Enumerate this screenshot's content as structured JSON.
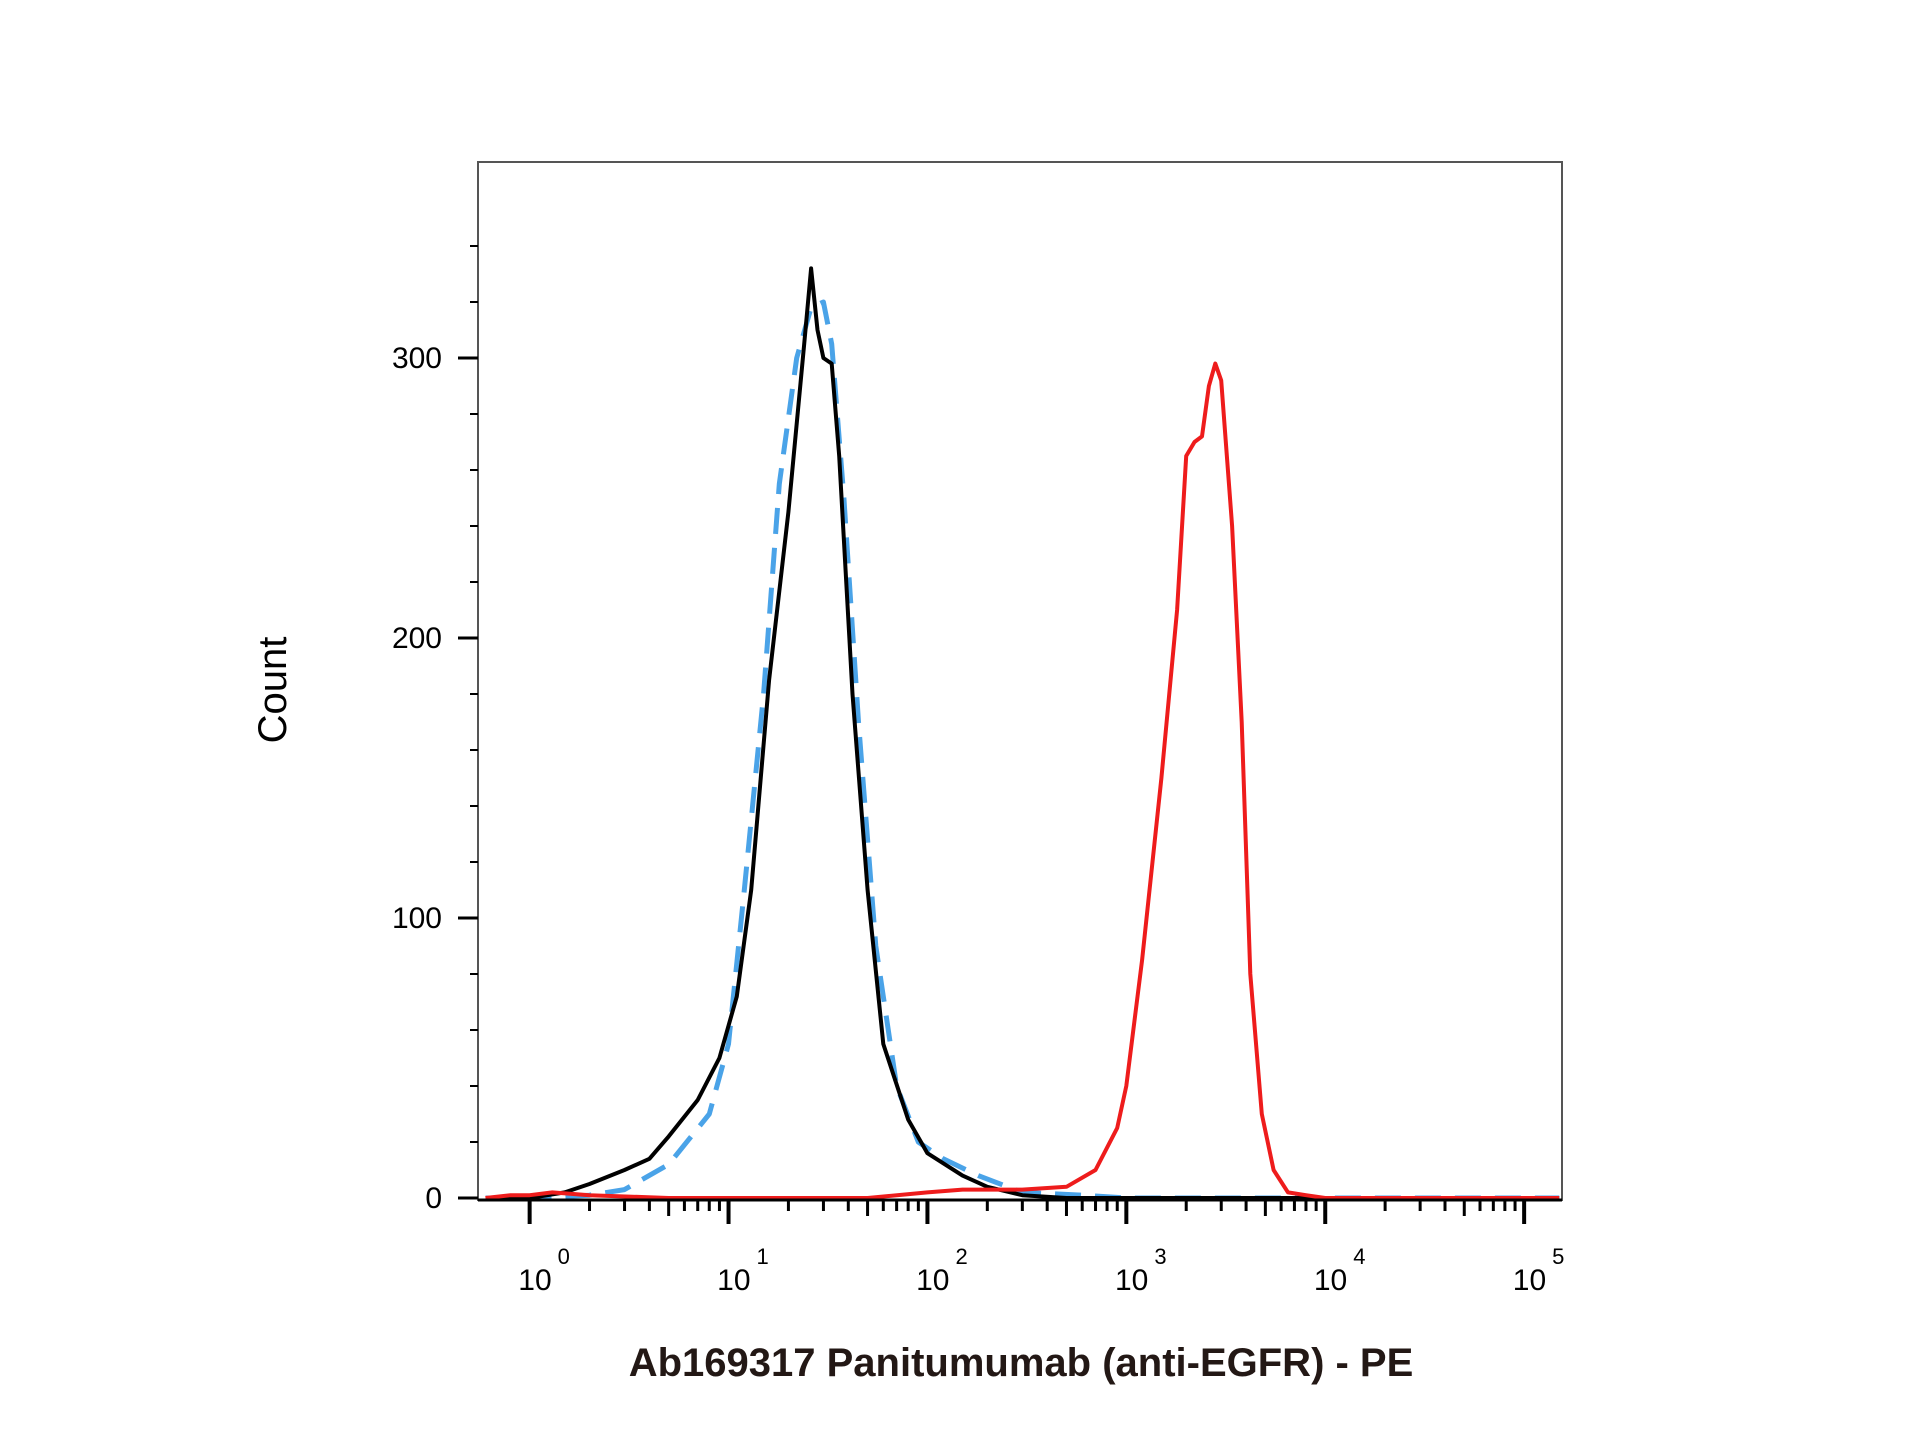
{
  "chart_data": {
    "type": "line",
    "title": "",
    "xlabel": "Ab169317 Panitumumab (anti-EGFR) - PE",
    "ylabel": "Count",
    "x_scale": "log",
    "xlim": [
      0.55,
      155000
    ],
    "ylim": [
      0,
      370
    ],
    "grid": false,
    "x_ticks": [
      {
        "base": "10",
        "exp": "0",
        "value": 1
      },
      {
        "base": "10",
        "exp": "1",
        "value": 10
      },
      {
        "base": "10",
        "exp": "2",
        "value": 100
      },
      {
        "base": "10",
        "exp": "3",
        "value": 1000
      },
      {
        "base": "10",
        "exp": "4",
        "value": 10000
      },
      {
        "base": "10",
        "exp": "5",
        "value": 100000
      }
    ],
    "y_ticks": [
      {
        "label": "0",
        "value": 0
      },
      {
        "label": "100",
        "value": 100
      },
      {
        "label": "200",
        "value": 200
      },
      {
        "label": "300",
        "value": 300
      }
    ],
    "series": [
      {
        "color": "#4aa3e8",
        "style": "dashed",
        "x": [
          0.6,
          1,
          2,
          3,
          5,
          8,
          10,
          12,
          15,
          18,
          22,
          26,
          30,
          33,
          38,
          45,
          55,
          70,
          90,
          120,
          180,
          300,
          600,
          1000,
          2000,
          5000,
          10000,
          150000
        ],
        "y": [
          0,
          0,
          1,
          3,
          12,
          30,
          55,
          110,
          180,
          255,
          300,
          318,
          320,
          305,
          250,
          170,
          90,
          40,
          20,
          14,
          8,
          2,
          1,
          0,
          0,
          0,
          0,
          0
        ]
      },
      {
        "color": "#000000",
        "style": "solid",
        "x": [
          0.6,
          1,
          1.5,
          2,
          3,
          4,
          5,
          7,
          9,
          11,
          13,
          16,
          20,
          24,
          26,
          28,
          30,
          33,
          36,
          42,
          50,
          60,
          80,
          100,
          150,
          200,
          300,
          500,
          1000,
          150000
        ],
        "y": [
          0,
          0,
          2,
          5,
          10,
          14,
          22,
          35,
          50,
          72,
          110,
          185,
          245,
          305,
          332,
          310,
          300,
          298,
          265,
          180,
          110,
          55,
          28,
          16,
          8,
          4,
          1,
          0,
          0,
          0
        ]
      },
      {
        "color": "#ee1c1c",
        "style": "solid",
        "x": [
          0.6,
          0.8,
          1,
          1.3,
          2,
          5,
          50,
          100,
          150,
          300,
          500,
          700,
          900,
          1000,
          1200,
          1500,
          1800,
          2000,
          2200,
          2400,
          2600,
          2800,
          3000,
          3400,
          3800,
          4200,
          4800,
          5500,
          6500,
          8000,
          10000,
          150000
        ],
        "y": [
          0,
          1,
          1,
          2,
          1,
          0,
          0,
          2,
          3,
          3,
          4,
          10,
          25,
          40,
          85,
          150,
          210,
          265,
          270,
          272,
          290,
          298,
          292,
          240,
          170,
          80,
          30,
          10,
          2,
          1,
          0,
          0
        ]
      }
    ]
  }
}
